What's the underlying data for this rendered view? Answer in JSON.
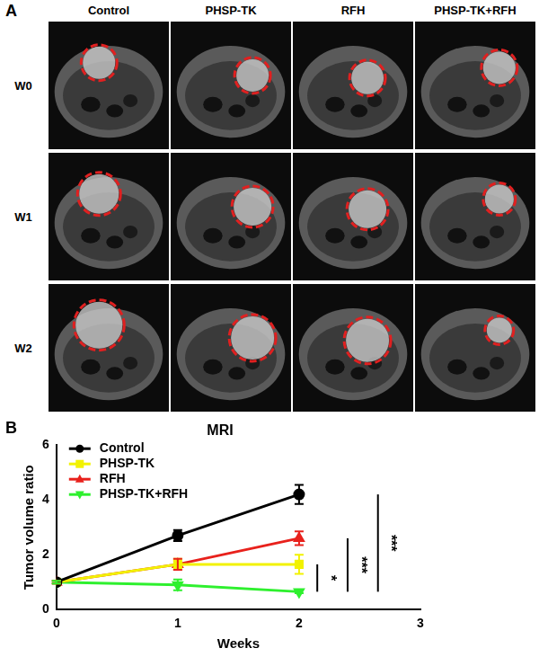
{
  "panel_labels": [
    "A",
    "B"
  ],
  "mri_panel": {
    "columns": [
      "PHSP-TK",
      "RFH",
      "PHSP-TK+RFH"
    ],
    "first_column": "Control",
    "rows": [
      "W0",
      "W1",
      "W2"
    ]
  },
  "chart_data": {
    "type": "line",
    "title": "MRI",
    "x_label": "Weeks",
    "y_label": "Tumor volume ratio",
    "x": [
      0,
      1,
      2
    ],
    "xlim": [
      0,
      3
    ],
    "xticks": [
      0,
      1,
      2,
      3
    ],
    "ylim": [
      0,
      6
    ],
    "yticks": [
      0,
      2,
      4,
      6
    ],
    "grid": false,
    "legend": "upper left",
    "series": [
      {
        "name": "Control",
        "color": "#000000",
        "marker": "circle",
        "values": [
          1.0,
          2.7,
          4.2
        ],
        "errors": [
          0.05,
          0.2,
          0.35
        ]
      },
      {
        "name": "PHSP-TK",
        "color": "#f2f200",
        "marker": "square",
        "values": [
          1.0,
          1.65,
          1.65
        ],
        "errors": [
          0.05,
          0.2,
          0.35
        ]
      },
      {
        "name": "RFH",
        "color": "#e8211c",
        "marker": "triangle",
        "values": [
          1.0,
          1.65,
          2.6
        ],
        "errors": [
          0.05,
          0.2,
          0.25
        ]
      },
      {
        "name": "PHSP-TK+RFH",
        "color": "#2ef02e",
        "marker": "triangle_down",
        "values": [
          1.0,
          0.9,
          0.65
        ],
        "errors": [
          0.05,
          0.2,
          0.05
        ]
      }
    ],
    "comparisons": [
      {
        "between": [
          "PHSP-TK",
          "PHSP-TK+RFH"
        ],
        "text": "*"
      },
      {
        "between": [
          "RFH",
          "PHSP-TK+RFH"
        ],
        "text": "***"
      },
      {
        "between": [
          "Control",
          "PHSP-TK+RFH"
        ],
        "text": "***"
      }
    ]
  }
}
